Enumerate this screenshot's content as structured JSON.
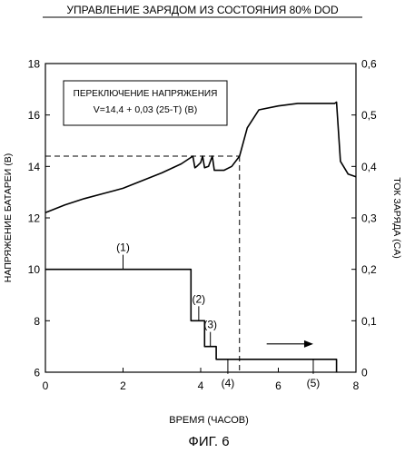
{
  "chart_data": {
    "type": "line",
    "title": "УПРАВЛЕНИЕ ЗАРЯДОМ ИЗ СОСТОЯНИЯ 80% DOD",
    "xlabel": "ВРЕМЯ (ЧАСОВ)",
    "ylabel_left": "НАПРЯЖЕНИЕ БАТАРЕИ (В)",
    "ylabel_right": "ТОК ЗАРЯДА (CA)",
    "xlim": [
      0,
      8
    ],
    "ylim_left": [
      6,
      18
    ],
    "ylim_right": [
      0,
      0.6
    ],
    "x_ticks": [
      "0",
      "2",
      "4",
      "6",
      "8"
    ],
    "y_left_ticks": [
      "6",
      "8",
      "10",
      "12",
      "14",
      "16",
      "18"
    ],
    "y_right_ticks": [
      "0",
      "0,1",
      "0,2",
      "0,3",
      "0,4",
      "0,5",
      "0,6"
    ],
    "grid": false,
    "annotation_box": {
      "line1": "ПЕРЕКЛЮЧЕНИЕ НАПРЯЖЕНИЯ",
      "line2": "V=14,4 + 0,03 (25-T) (В)"
    },
    "series": [
      {
        "axis": "left",
        "x": [
          0,
          0.5,
          1,
          1.5,
          2,
          2.5,
          3,
          3.5,
          3.8,
          3.85,
          3.9,
          4.0,
          4.05,
          4.1,
          4.2,
          4.3,
          4.35,
          4.4,
          4.6,
          4.8,
          5.0,
          5.2,
          5.5,
          6.0,
          6.5,
          7.0,
          7.45,
          7.5,
          7.6,
          7.8,
          8.0
        ],
        "y": [
          12.2,
          12.5,
          12.75,
          12.95,
          13.15,
          13.45,
          13.75,
          14.1,
          14.4,
          13.95,
          14.0,
          14.15,
          14.4,
          13.95,
          14.0,
          14.4,
          13.85,
          13.85,
          13.85,
          14.0,
          14.4,
          15.5,
          16.2,
          16.35,
          16.45,
          16.45,
          16.45,
          16.5,
          14.2,
          13.7,
          13.6
        ]
      },
      {
        "axis": "right",
        "x": [
          0,
          3.75,
          3.75,
          4.1,
          4.1,
          4.4,
          4.4,
          7.5,
          7.5
        ],
        "y": [
          0.2,
          0.2,
          0.1,
          0.1,
          0.05,
          0.05,
          0.025,
          0.025,
          0.0
        ]
      }
    ],
    "reference_lines": {
      "horizontal_y_left": 14.4,
      "vertical_x": 5.0
    },
    "stage_labels": [
      {
        "text": "(1)",
        "x": 2.0,
        "y_right": 0.2
      },
      {
        "text": "(2)",
        "x": 3.95,
        "y_right": 0.1
      },
      {
        "text": "(3)",
        "x": 4.25,
        "y_right": 0.05
      },
      {
        "text": "(4)",
        "x": 4.7,
        "y_right": 0.025
      },
      {
        "text": "(5)",
        "x": 6.9,
        "y_right": 0.025
      }
    ],
    "arrow": {
      "x_from": 5.7,
      "x_to": 6.9,
      "y_right": 0.055
    }
  },
  "caption": "ФИГ. 6"
}
